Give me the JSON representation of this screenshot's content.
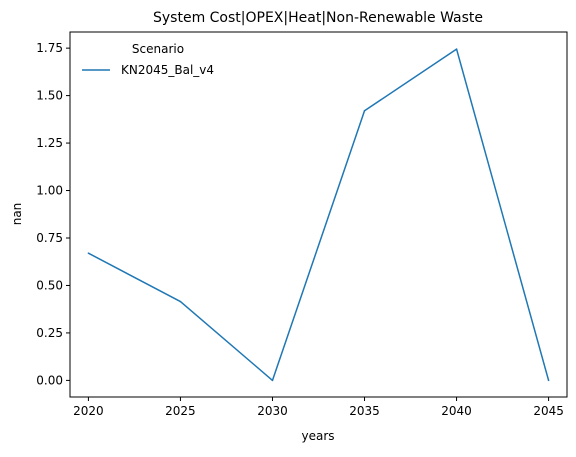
{
  "chart_data": {
    "type": "line",
    "title": "System Cost|OPEX|Heat|Non-Renewable Waste",
    "xlabel": "years",
    "ylabel": "nan",
    "x": [
      2020,
      2025,
      2030,
      2035,
      2040,
      2045
    ],
    "x_ticks": [
      "2020",
      "2025",
      "2030",
      "2035",
      "2040",
      "2045"
    ],
    "y_ticks": [
      "0.00",
      "0.25",
      "0.50",
      "0.75",
      "1.00",
      "1.25",
      "1.50",
      "1.75"
    ],
    "xlim": [
      2019,
      2046
    ],
    "ylim": [
      -0.0875,
      1.835
    ],
    "grid": false,
    "legend": {
      "title": "Scenario",
      "placement": "top-left"
    },
    "series": [
      {
        "name": "KN2045_Bal_v4",
        "color": "#1f77b4",
        "values": [
          0.67,
          0.415,
          0.0,
          1.42,
          1.745,
          0.0
        ]
      }
    ]
  }
}
